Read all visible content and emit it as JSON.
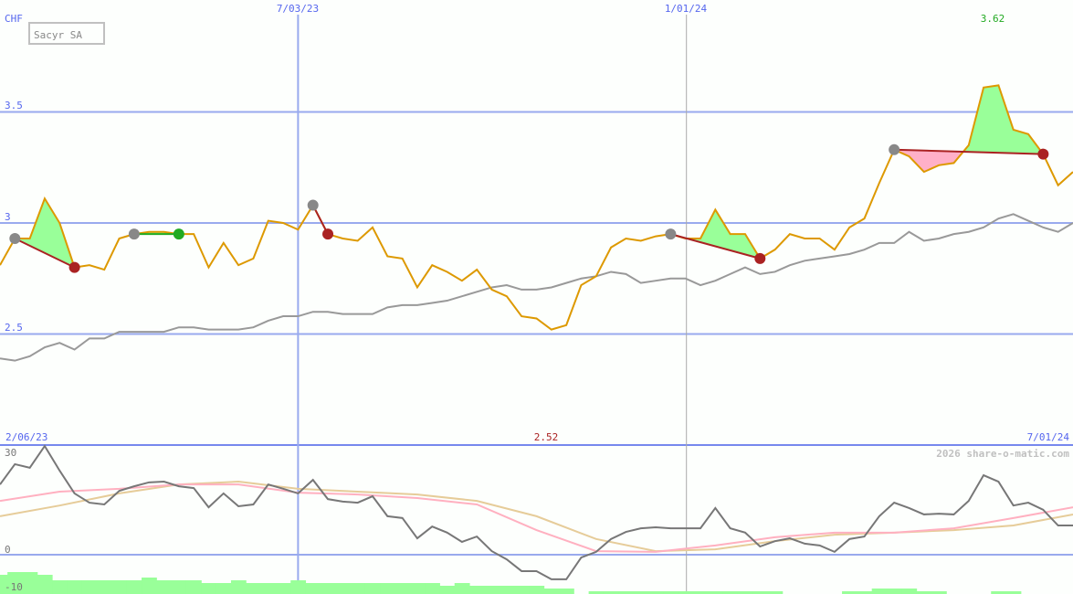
{
  "title": "Sacyr SA",
  "currency": "CHF",
  "copyright": "2026 share-o-matic.com",
  "colors": {
    "price": "#dd9900",
    "average": "#999999",
    "grid": "#99aaee",
    "gain": "#99ff99",
    "loss": "#ffb0c8",
    "exit_loss": "#aa2222",
    "exit_gain": "#22aa22",
    "entry": "#888888",
    "osc": "#777777",
    "osc_fast": "#ffb0c0",
    "osc_slow": "#e6cc99",
    "volume": "#99ff99"
  },
  "chart_data": [
    {
      "type": "line",
      "title": "Sacyr SA",
      "ylabel": "CHF",
      "ylim": [
        2.27,
        3.99
      ],
      "yticks": [
        "3.5",
        "3",
        "2.5"
      ],
      "ytick_values": [
        3.5,
        3.0,
        2.5
      ],
      "x_start": "2/06/23",
      "x_end": "7/01/24",
      "x_interval": "weekly",
      "xtick_labels_top": [
        {
          "label": "7/03/23",
          "week": 20
        },
        {
          "label": "1/01/24",
          "week": 46
        }
      ],
      "max_label": "3.62",
      "min_label": "2.52",
      "grid": true,
      "series": [
        {
          "values": [
            2.81,
            2.93,
            2.93,
            3.11,
            3.0,
            2.8,
            2.81,
            2.79,
            2.93,
            2.95,
            2.96,
            2.96,
            2.95,
            2.95,
            2.8,
            2.91,
            2.81,
            2.84,
            3.01,
            3.0,
            2.97,
            3.08,
            2.95,
            2.93,
            2.92,
            2.98,
            2.85,
            2.84,
            2.71,
            2.81,
            2.78,
            2.74,
            2.79,
            2.7,
            2.67,
            2.58,
            2.57,
            2.52,
            2.54,
            2.72,
            2.76,
            2.89,
            2.93,
            2.92,
            2.94,
            2.95,
            2.93,
            2.93,
            3.06,
            2.95,
            2.95,
            2.84,
            2.88,
            2.95,
            2.93,
            2.93,
            2.88,
            2.98,
            3.02,
            3.18,
            3.33,
            3.3,
            3.23,
            3.26,
            3.27,
            3.35,
            3.61,
            3.62,
            3.42,
            3.4,
            3.31,
            3.17,
            3.23
          ]
        },
        {
          "values": [
            2.39,
            2.38,
            2.4,
            2.44,
            2.46,
            2.43,
            2.48,
            2.48,
            2.51,
            2.51,
            2.51,
            2.51,
            2.53,
            2.53,
            2.52,
            2.52,
            2.52,
            2.53,
            2.56,
            2.58,
            2.58,
            2.6,
            2.6,
            2.59,
            2.59,
            2.59,
            2.62,
            2.63,
            2.63,
            2.64,
            2.65,
            2.67,
            2.69,
            2.71,
            2.72,
            2.7,
            2.7,
            2.71,
            2.73,
            2.75,
            2.76,
            2.78,
            2.77,
            2.73,
            2.74,
            2.75,
            2.75,
            2.72,
            2.74,
            2.77,
            2.8,
            2.77,
            2.78,
            2.81,
            2.83,
            2.84,
            2.85,
            2.86,
            2.88,
            2.91,
            2.91,
            2.96,
            2.92,
            2.93,
            2.95,
            2.96,
            2.98,
            3.02,
            3.04,
            3.01,
            2.98,
            2.96,
            3.0
          ]
        }
      ],
      "trades": [
        {
          "entry_week": 1,
          "exit_week": 5,
          "result": "loss"
        },
        {
          "entry_week": 9,
          "exit_week": 12,
          "result": "gain"
        },
        {
          "entry_week": 21,
          "exit_week": 22,
          "result": "loss"
        },
        {
          "entry_week": 45,
          "exit_week": 51,
          "result": "loss"
        },
        {
          "entry_week": 60,
          "exit_week": 70,
          "result": "loss"
        }
      ]
    },
    {
      "type": "line",
      "ylim": [
        -11,
        33
      ],
      "yticks": [
        "30",
        "0",
        "-10"
      ],
      "ytick_values": [
        30,
        0,
        -10
      ],
      "xtick_labels": [
        "2/06/23",
        "7/01/24"
      ],
      "series": [
        {
          "values": [
            19.7,
            25.4,
            24.4,
            30.5,
            23.6,
            17.2,
            14.6,
            14.1,
            17.9,
            19.2,
            20.3,
            20.5,
            19.2,
            18.7,
            13.3,
            17.2,
            13.6,
            14.1,
            19.7,
            18.5,
            17.2,
            21.0,
            15.6,
            14.9,
            14.6,
            16.4,
            10.8,
            10.3,
            4.6,
            7.9,
            6.2,
            3.6,
            5.1,
            1.0,
            -1.3,
            -4.6,
            -4.6,
            -6.9,
            -6.9,
            -0.8,
            0.8,
            4.4,
            6.4,
            7.4,
            7.7,
            7.4,
            7.4,
            7.4,
            13.1,
            7.4,
            6.2,
            2.3,
            3.8,
            4.6,
            3.1,
            2.6,
            0.8,
            4.4,
            5.1,
            10.8,
            14.6,
            13.1,
            11.3,
            11.5,
            11.3,
            15.1,
            22.3,
            20.5,
            13.8,
            14.6,
            12.6,
            8.2,
            8.2
          ]
        },
        {
          "values": [
            15.1,
            17.7,
            18.5,
            19.7,
            19.7,
            17.4,
            16.9,
            15.9,
            14.1,
            6.9,
            1.0,
            0.8,
            2.6,
            4.9,
            6.2,
            6.2,
            7.4,
            10.3,
            13.3
          ]
        },
        {
          "values": [
            10.8,
            13.8,
            17.2,
            19.7,
            20.5,
            18.5,
            17.7,
            16.9,
            15.1,
            10.8,
            4.4,
            1.0,
            1.5,
            3.8,
            5.6,
            6.2,
            6.9,
            8.2,
            11.3
          ]
        }
      ],
      "volume": [
        7,
        8,
        8,
        7,
        5,
        5,
        5,
        5,
        5,
        5,
        6,
        5,
        5,
        5,
        4,
        4,
        5,
        4,
        4,
        4,
        5,
        4,
        4,
        4,
        4,
        4,
        4,
        4,
        4,
        4,
        3,
        4,
        3,
        3,
        3,
        3,
        3,
        2,
        2,
        0,
        1,
        1,
        1,
        1,
        1,
        1,
        1,
        1,
        1,
        1,
        1,
        1,
        1,
        0,
        0,
        0,
        0,
        1,
        1,
        2,
        2,
        2,
        1,
        1,
        0,
        0,
        0,
        1,
        1,
        0,
        0,
        0,
        0
      ]
    }
  ]
}
